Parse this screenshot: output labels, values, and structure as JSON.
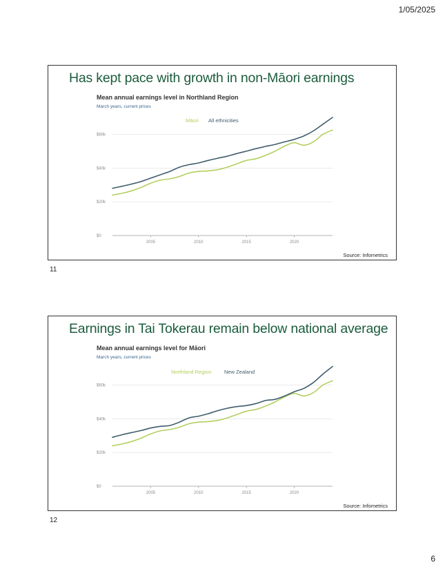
{
  "page": {
    "date": "1/05/2025",
    "number": "6"
  },
  "slides": [
    {
      "slide_number": "11",
      "title": "Has kept pace with growth in non-Māori earnings",
      "source": "Source: Infometrics",
      "legend": [
        {
          "label": "Māori",
          "color": "#b3cf5e"
        },
        {
          "label": "All ethnicities",
          "color": "#3e5c6b"
        }
      ]
    },
    {
      "slide_number": "12",
      "title": "Earnings in Tai Tokerau remain below national average",
      "source": "Source: Infometrics",
      "legend": [
        {
          "label": "Northland Region",
          "color": "#b3cf5e"
        },
        {
          "label": "New Zealand",
          "color": "#3e5c6b"
        }
      ]
    }
  ],
  "chart_data": [
    {
      "type": "line",
      "title": "Mean annual earnings level in Northland Region",
      "subtitle": "March years, current prices",
      "xlabel": "",
      "ylabel": "",
      "xlim": [
        2001,
        2024
      ],
      "ylim": [
        0,
        70000
      ],
      "x_ticks": [
        2005,
        2010,
        2015,
        2020
      ],
      "y_ticks": [
        0,
        20000,
        40000,
        60000
      ],
      "y_tick_labels": [
        "$0",
        "$20k",
        "$40k",
        "$60k"
      ],
      "grid": true,
      "legend_position": "top-center",
      "x": [
        2001,
        2002,
        2003,
        2004,
        2005,
        2006,
        2007,
        2008,
        2009,
        2010,
        2011,
        2012,
        2013,
        2014,
        2015,
        2016,
        2017,
        2018,
        2019,
        2020,
        2021,
        2022,
        2023,
        2024
      ],
      "series": [
        {
          "name": "Māori",
          "color": "#b3cf5e",
          "values": [
            24000,
            25000,
            26500,
            28500,
            31000,
            32800,
            33600,
            35000,
            37000,
            38000,
            38300,
            39000,
            40500,
            42500,
            44500,
            45500,
            47500,
            50000,
            53000,
            55000,
            53500,
            55500,
            60000,
            62500
          ]
        },
        {
          "name": "All ethnicities",
          "color": "#3e5c6b",
          "values": [
            28000,
            29200,
            30500,
            32000,
            34000,
            36000,
            38000,
            40500,
            42000,
            43000,
            44500,
            45800,
            47000,
            48600,
            50000,
            51500,
            52800,
            54000,
            55500,
            57000,
            59000,
            62000,
            66000,
            70000
          ]
        }
      ]
    },
    {
      "type": "line",
      "title": "Mean annual earnings level for Māori",
      "subtitle": "March years, current prices",
      "xlabel": "",
      "ylabel": "",
      "xlim": [
        2001,
        2024
      ],
      "ylim": [
        0,
        70000
      ],
      "x_ticks": [
        2005,
        2010,
        2015,
        2020
      ],
      "y_ticks": [
        0,
        20000,
        40000,
        60000
      ],
      "y_tick_labels": [
        "$0",
        "$20k",
        "$40k",
        "$60k"
      ],
      "grid": true,
      "legend_position": "top-center",
      "x": [
        2001,
        2002,
        2003,
        2004,
        2005,
        2006,
        2007,
        2008,
        2009,
        2010,
        2011,
        2012,
        2013,
        2014,
        2015,
        2016,
        2017,
        2018,
        2019,
        2020,
        2021,
        2022,
        2023,
        2024
      ],
      "series": [
        {
          "name": "Northland Region",
          "color": "#b3cf5e",
          "values": [
            24000,
            25000,
            26500,
            28500,
            31000,
            32800,
            33600,
            35000,
            37000,
            38000,
            38300,
            39000,
            40500,
            42500,
            44500,
            45500,
            47500,
            50000,
            53000,
            55000,
            53500,
            55500,
            60000,
            62500
          ]
        },
        {
          "name": "New Zealand",
          "color": "#3e5c6b",
          "values": [
            29000,
            30500,
            31800,
            33000,
            34500,
            35500,
            36000,
            38000,
            40500,
            41500,
            43000,
            44800,
            46200,
            47200,
            47800,
            49000,
            50800,
            51500,
            53500,
            56000,
            58000,
            61500,
            66500,
            71000
          ]
        }
      ]
    }
  ]
}
